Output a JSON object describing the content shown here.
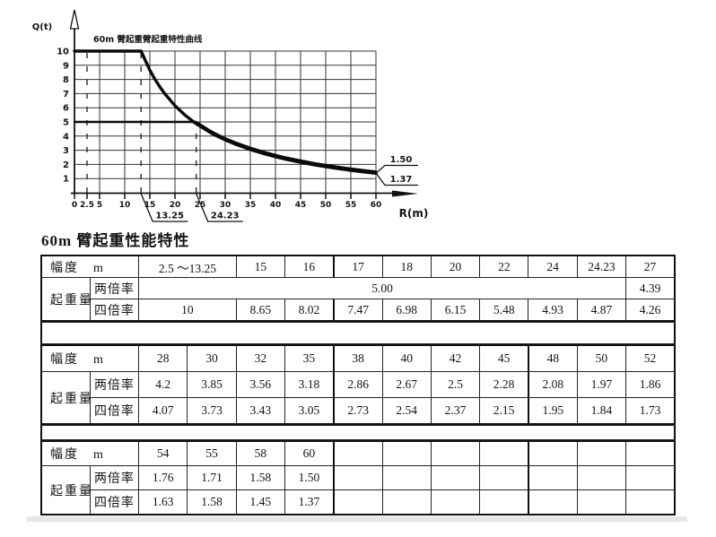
{
  "page": {
    "background": "#ffffff",
    "ink_color": "#141414",
    "border_color": "#222222",
    "strip_color": "#e7e7e7"
  },
  "section_title": "60m 臂起重性能特性",
  "chart_data": {
    "type": "line",
    "title": "60m 臂起重臂起重特性曲线",
    "ylabel": "Q(t)",
    "xlabel": "R(m)",
    "xlim": [
      0,
      60
    ],
    "ylim": [
      0,
      10
    ],
    "grid": true,
    "x_ticks": [
      0,
      2.5,
      5,
      10,
      15,
      20,
      25,
      30,
      35,
      40,
      45,
      50,
      55,
      60
    ],
    "x_tick_labels": [
      "0",
      "2.5",
      "5",
      "10",
      "15",
      "20",
      "25",
      "30",
      "35",
      "40",
      "45",
      "50",
      "55",
      "60"
    ],
    "y_ticks": [
      1,
      2,
      3,
      4,
      5,
      6,
      7,
      8,
      9,
      10
    ],
    "grid_x": [
      5,
      10,
      15,
      20,
      25,
      30,
      35,
      40,
      45,
      50,
      55,
      60
    ],
    "dashed_x": [
      {
        "x": 2.5,
        "to": 10
      },
      {
        "x": 13.25,
        "to": 10
      },
      {
        "x": 24.23,
        "to": 5
      }
    ],
    "series": [
      {
        "name": "两倍率",
        "x": [
          0,
          24.23,
          27,
          28,
          30,
          32,
          35,
          38,
          40,
          42,
          45,
          48,
          50,
          52,
          54,
          55,
          58,
          60
        ],
        "y": [
          5.0,
          5.0,
          4.39,
          4.2,
          3.85,
          3.56,
          3.18,
          2.86,
          2.67,
          2.5,
          2.28,
          2.08,
          1.97,
          1.86,
          1.76,
          1.71,
          1.58,
          1.5
        ]
      },
      {
        "name": "四倍率",
        "x": [
          0,
          13.25,
          15,
          16,
          17,
          18,
          20,
          22,
          24,
          24.23,
          27,
          28,
          30,
          32,
          35,
          38,
          40,
          42,
          45,
          48,
          50,
          52,
          54,
          55,
          58,
          60
        ],
        "y": [
          10,
          10,
          8.65,
          8.02,
          7.47,
          6.98,
          6.15,
          5.48,
          4.93,
          4.87,
          4.26,
          4.07,
          3.73,
          3.43,
          3.05,
          2.73,
          2.54,
          2.37,
          2.15,
          1.95,
          1.84,
          1.73,
          1.63,
          1.58,
          1.45,
          1.37
        ]
      }
    ],
    "right_callouts": [
      {
        "label": "1.50"
      },
      {
        "label": "1.37"
      }
    ],
    "bottom_callouts": [
      {
        "label": "13.25",
        "x": 13.25
      },
      {
        "label": "24.23",
        "x": 24.23
      }
    ]
  },
  "tables": [
    {
      "rows": [
        [
          {
            "t": "幅度　m",
            "cs": 2,
            "cls": "lbl"
          },
          {
            "t": "2.5 ～13.25",
            "cs": 2
          },
          {
            "t": "15"
          },
          {
            "t": "16"
          },
          {
            "t": "17",
            "cls": "hb"
          },
          {
            "t": "18"
          },
          {
            "t": "20"
          },
          {
            "t": "22"
          },
          {
            "t": "24"
          },
          {
            "t": "24.23"
          },
          {
            "t": "27"
          }
        ],
        [
          {
            "t": "起重量  (t)",
            "rs": 2,
            "cls": "lbl"
          },
          {
            "t": "两倍率",
            "cls": "sub"
          },
          {
            "t": "5.00",
            "cs": 10
          },
          {
            "t": "4.39"
          }
        ],
        [
          {
            "t": "四倍率",
            "cls": "sub"
          },
          {
            "t": "10",
            "cs": 2
          },
          {
            "t": "8.65"
          },
          {
            "t": "8.02"
          },
          {
            "t": "7.47",
            "cls": "hb"
          },
          {
            "t": "6.98"
          },
          {
            "t": "6.15"
          },
          {
            "t": "5.48"
          },
          {
            "t": "4.93"
          },
          {
            "t": "4.87"
          },
          {
            "t": "4.26"
          }
        ]
      ]
    },
    {
      "rows": [
        [
          {
            "t": "幅度　m",
            "cs": 2,
            "cls": "lbl"
          },
          {
            "t": "28"
          },
          {
            "t": "30"
          },
          {
            "t": "32"
          },
          {
            "t": "35"
          },
          {
            "t": "38",
            "cls": "hb"
          },
          {
            "t": "40"
          },
          {
            "t": "42"
          },
          {
            "t": "45"
          },
          {
            "t": "48",
            "cls": "hb"
          },
          {
            "t": "50"
          },
          {
            "t": "52"
          }
        ],
        [
          {
            "t": "起重量  (t)",
            "rs": 2,
            "cls": "lbl"
          },
          {
            "t": "两倍率",
            "cls": "sub"
          },
          {
            "t": "4.2"
          },
          {
            "t": "3.85"
          },
          {
            "t": "3.56"
          },
          {
            "t": "3.18"
          },
          {
            "t": "2.86",
            "cls": "hb"
          },
          {
            "t": "2.67"
          },
          {
            "t": "2.5"
          },
          {
            "t": "2.28"
          },
          {
            "t": "2.08",
            "cls": "hb"
          },
          {
            "t": "1.97"
          },
          {
            "t": "1.86"
          }
        ],
        [
          {
            "t": "四倍率",
            "cls": "sub"
          },
          {
            "t": "4.07"
          },
          {
            "t": "3.73"
          },
          {
            "t": "3.43"
          },
          {
            "t": "3.05"
          },
          {
            "t": "2.73",
            "cls": "hb"
          },
          {
            "t": "2.54"
          },
          {
            "t": "2.37"
          },
          {
            "t": "2.15"
          },
          {
            "t": "1.95",
            "cls": "hb"
          },
          {
            "t": "1.84"
          },
          {
            "t": "1.73"
          }
        ]
      ]
    },
    {
      "rows": [
        [
          {
            "t": "幅度　m",
            "cs": 2,
            "cls": "lbl"
          },
          {
            "t": "54"
          },
          {
            "t": "55"
          },
          {
            "t": "58"
          },
          {
            "t": "60"
          },
          {
            "t": "",
            "cls": "hb"
          },
          {
            "t": ""
          },
          {
            "t": ""
          },
          {
            "t": ""
          },
          {
            "t": "",
            "cls": "hb"
          },
          {
            "t": ""
          },
          {
            "t": ""
          }
        ],
        [
          {
            "t": "起重量  (t)",
            "rs": 2,
            "cls": "lbl"
          },
          {
            "t": "两倍率",
            "cls": "sub"
          },
          {
            "t": "1.76"
          },
          {
            "t": "1.71"
          },
          {
            "t": "1.58"
          },
          {
            "t": "1.50"
          },
          {
            "t": "",
            "cls": "hb"
          },
          {
            "t": ""
          },
          {
            "t": ""
          },
          {
            "t": ""
          },
          {
            "t": "",
            "cls": "hb"
          },
          {
            "t": ""
          },
          {
            "t": ""
          }
        ],
        [
          {
            "t": "四倍率",
            "cls": "sub"
          },
          {
            "t": "1.63"
          },
          {
            "t": "1.58"
          },
          {
            "t": "1.45"
          },
          {
            "t": "1.37"
          },
          {
            "t": "",
            "cls": "hb"
          },
          {
            "t": ""
          },
          {
            "t": ""
          },
          {
            "t": ""
          },
          {
            "t": "",
            "cls": "hb"
          },
          {
            "t": ""
          },
          {
            "t": ""
          }
        ]
      ]
    }
  ]
}
